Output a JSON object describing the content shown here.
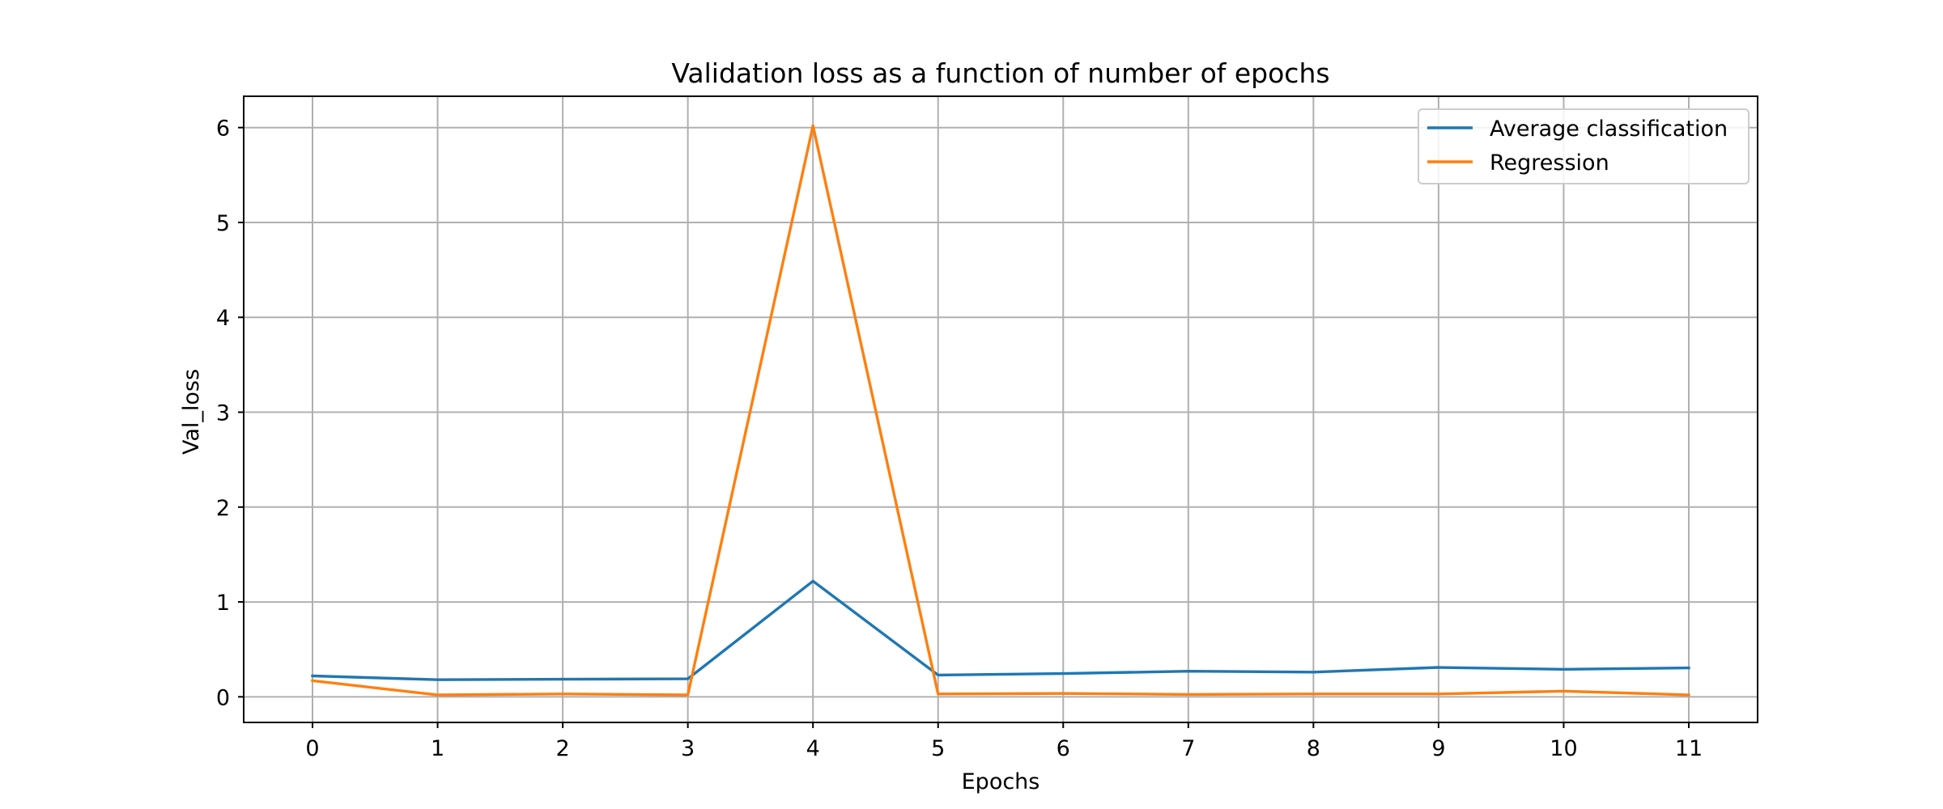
{
  "chart_data": {
    "type": "line",
    "title": "Validation loss as a function of number of epochs",
    "xlabel": "Epochs",
    "ylabel": "Val_loss",
    "x": [
      0,
      1,
      2,
      3,
      4,
      5,
      6,
      7,
      8,
      9,
      10,
      11
    ],
    "xlim": [
      -0.55,
      11.55
    ],
    "ylim": [
      -0.27,
      6.33
    ],
    "xticks": [
      0,
      1,
      2,
      3,
      4,
      5,
      6,
      7,
      8,
      9,
      10,
      11
    ],
    "yticks": [
      0,
      1,
      2,
      3,
      4,
      5,
      6
    ],
    "grid": true,
    "legend_position": "top-right",
    "series": [
      {
        "name": "Average classification",
        "color": "#1f77b4",
        "values": [
          0.22,
          0.18,
          0.185,
          0.19,
          1.22,
          0.23,
          0.245,
          0.27,
          0.26,
          0.31,
          0.29,
          0.305
        ]
      },
      {
        "name": "Regression",
        "color": "#ff7f0e",
        "values": [
          0.17,
          0.02,
          0.03,
          0.02,
          6.02,
          0.03,
          0.035,
          0.025,
          0.03,
          0.03,
          0.06,
          0.02
        ]
      }
    ]
  }
}
